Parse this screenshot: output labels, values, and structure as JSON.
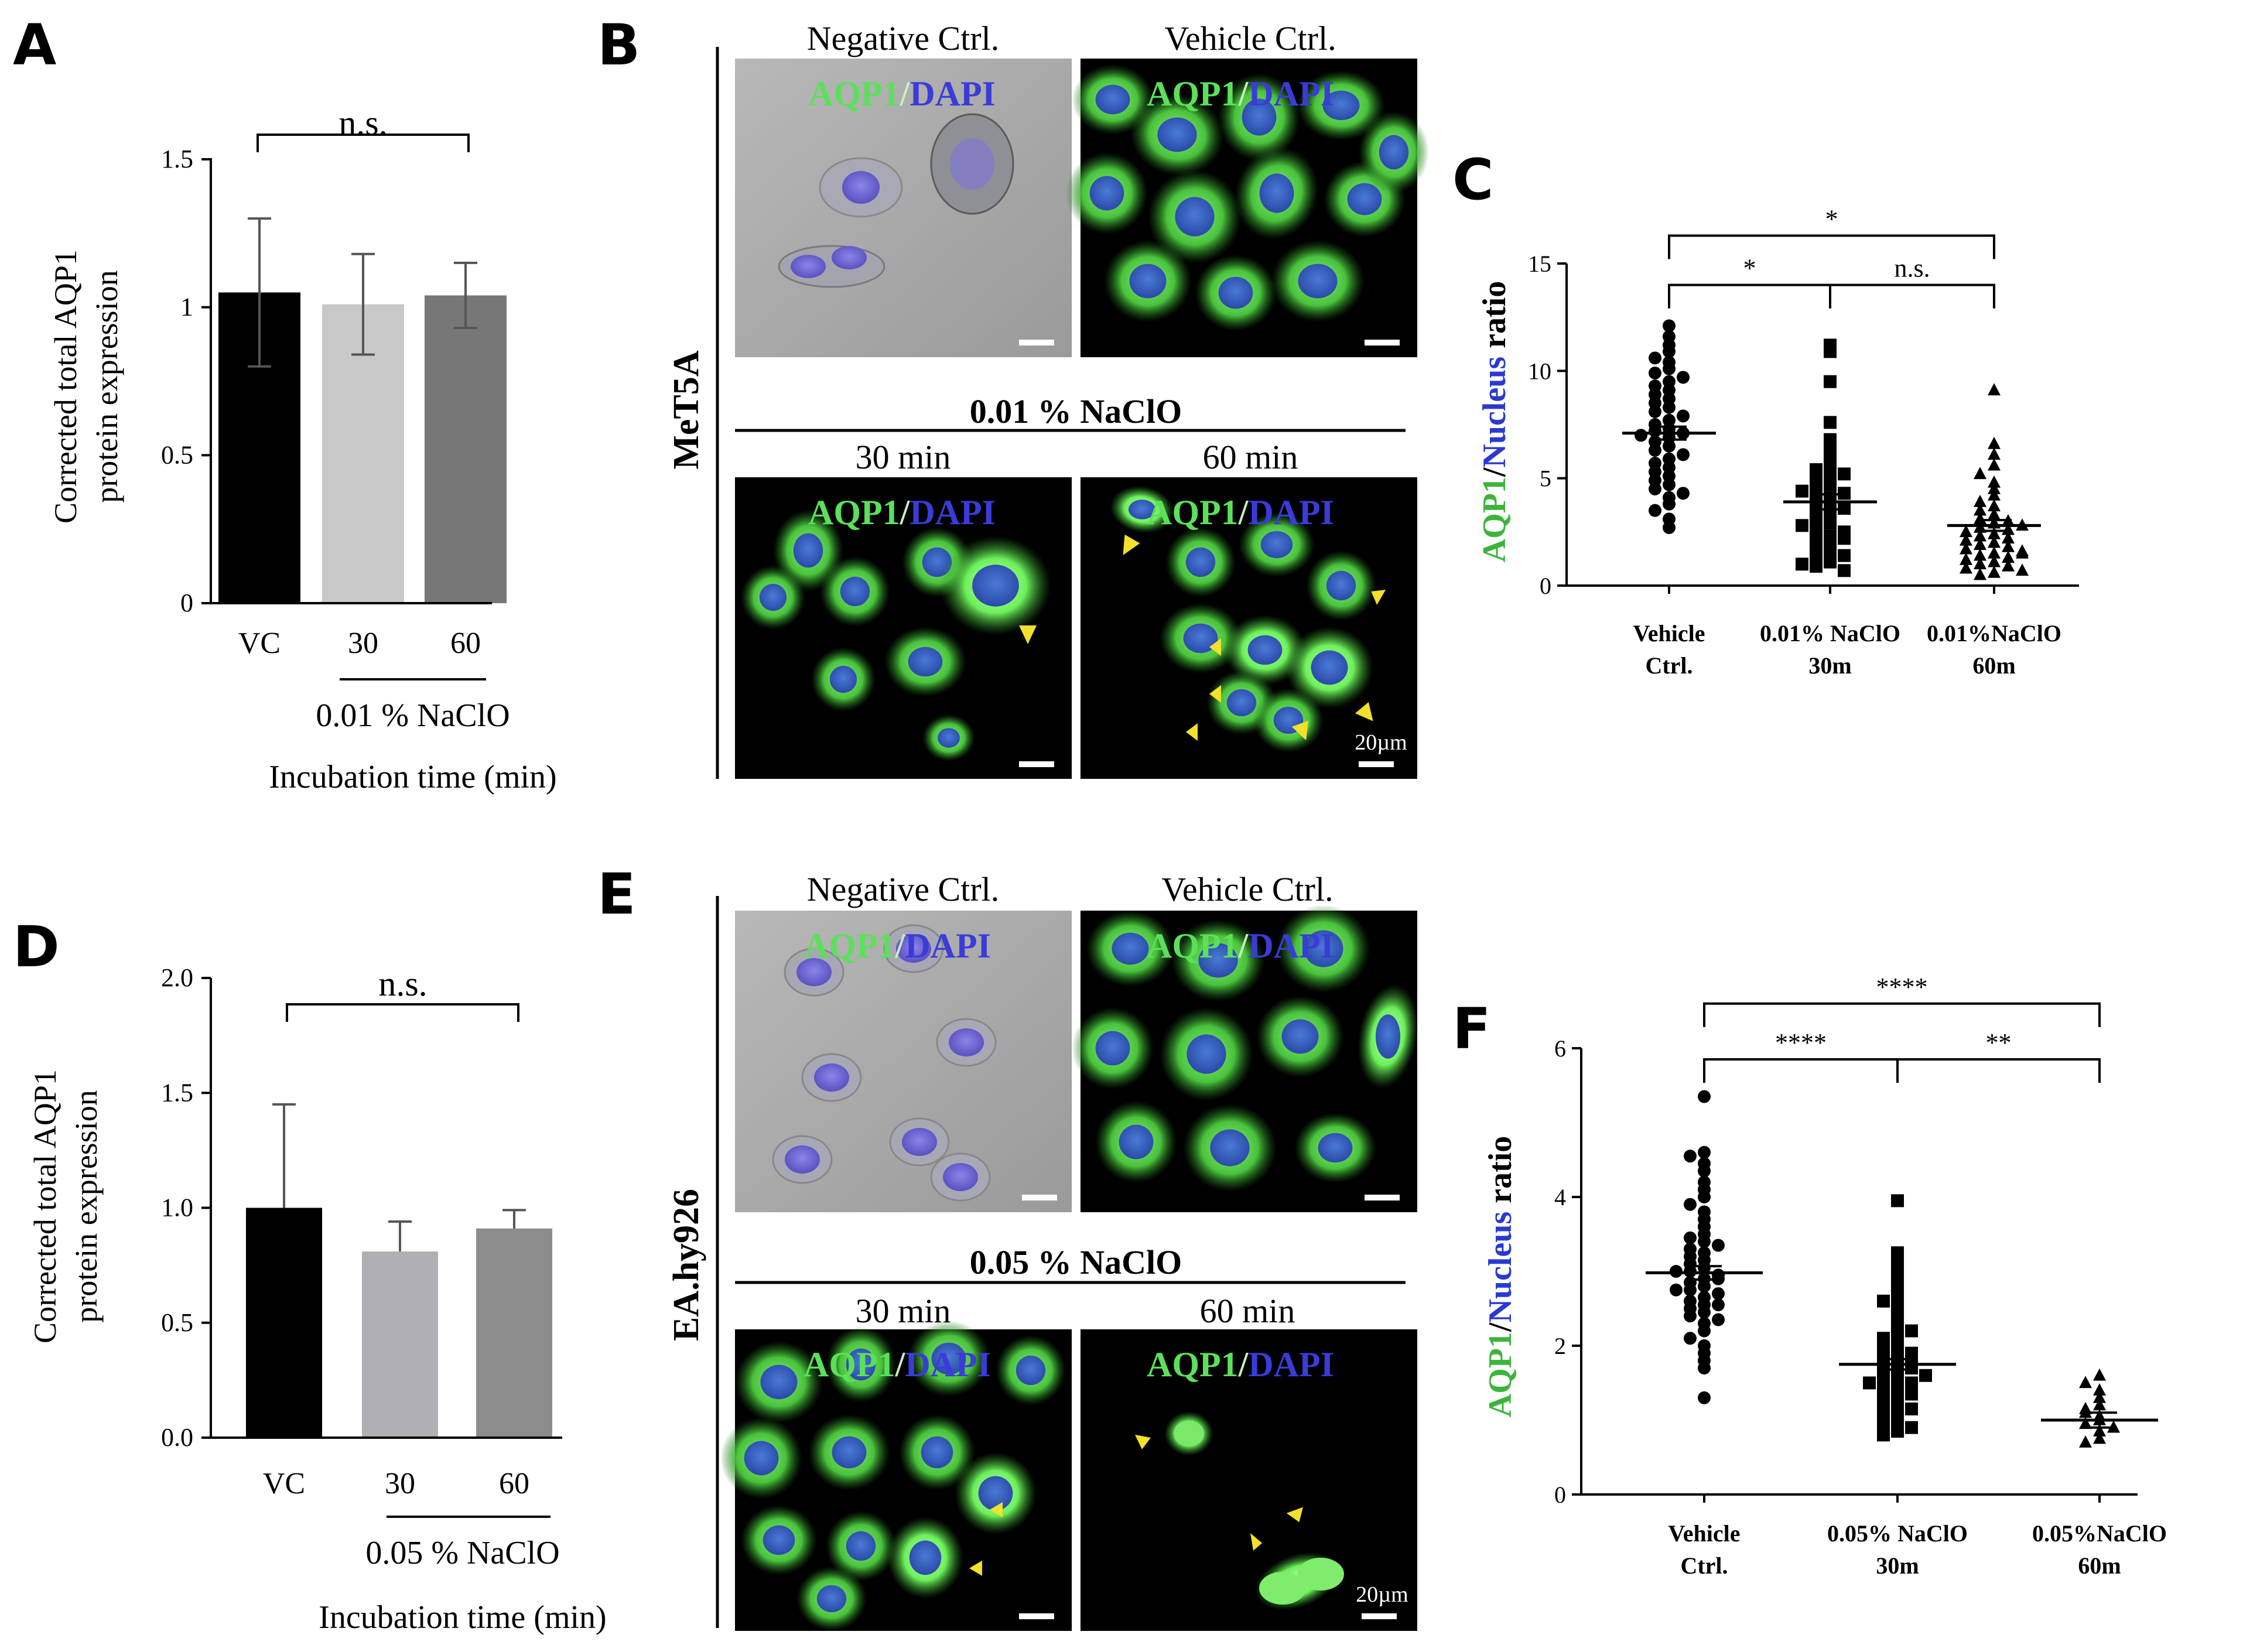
{
  "panels": {
    "A": "A",
    "B": "B",
    "C": "C",
    "D": "D",
    "E": "E",
    "F": "F"
  },
  "chart_data": [
    {
      "type": "bar",
      "panel": "A",
      "categories": [
        "VC",
        "30",
        "60"
      ],
      "values": [
        1.05,
        1.01,
        1.04
      ],
      "errors": [
        0.25,
        0.17,
        0.11
      ],
      "colors": [
        "#000000",
        "#c8c8c8",
        "#777777"
      ],
      "ylabel_line1": "Corrected total AQP1",
      "ylabel_line2": "protein expression",
      "yticks": [
        "0",
        "0.5",
        "1",
        "1.5"
      ],
      "ylim": [
        0,
        1.5
      ],
      "group_label": "0.01 % NaClO",
      "xlabel": "Incubation time (min)",
      "significance": "n.s."
    },
    {
      "type": "bar",
      "panel": "D",
      "categories": [
        "VC",
        "30",
        "60"
      ],
      "values": [
        1.0,
        0.81,
        0.91
      ],
      "errors": [
        0.45,
        0.13,
        0.08
      ],
      "colors": [
        "#000000",
        "#b0b0b4",
        "#8c8c8c"
      ],
      "ylabel_line1": "Corrected total AQP1",
      "ylabel_line2": "protein expression",
      "yticks": [
        "0.0",
        "0.5",
        "1.0",
        "1.5",
        "2.0"
      ],
      "ylim": [
        0,
        2.0
      ],
      "group_label": "0.05 % NaClO",
      "xlabel": "Incubation time (min)",
      "significance": "n.s."
    },
    {
      "type": "scatter",
      "panel": "C",
      "ylabel_green": "AQP1",
      "ylabel_slash": "/",
      "ylabel_blue": "Nucleus",
      "ylabel_rest": " ratio",
      "yticks": [
        "0",
        "5",
        "10",
        "15"
      ],
      "ylim": [
        0,
        15
      ],
      "groups": [
        {
          "line1": "Vehicle",
          "line2": "Ctrl.",
          "marker": "circle",
          "mean": 7.1,
          "sem": 0.3,
          "values": [
            12.1,
            11.6,
            11.2,
            10.9,
            10.6,
            10.4,
            10.1,
            9.9,
            9.7,
            9.5,
            9.3,
            9.1,
            8.9,
            8.7,
            8.5,
            8.3,
            8.1,
            7.9,
            7.7,
            7.5,
            7.3,
            7.2,
            7.1,
            7.0,
            6.9,
            6.7,
            6.5,
            6.3,
            6.1,
            5.9,
            5.7,
            5.5,
            5.3,
            5.1,
            4.9,
            4.7,
            4.5,
            4.3,
            4.1,
            3.8,
            3.5,
            3.1,
            2.7
          ]
        },
        {
          "line1": "0.01% NaClO",
          "line2": "30m",
          "marker": "square",
          "mean": 3.9,
          "sem": 0.35,
          "values": [
            11.2,
            10.9,
            9.5,
            7.6,
            6.8,
            6.3,
            5.8,
            5.6,
            5.4,
            5.1,
            4.9,
            4.7,
            4.5,
            4.3,
            4.1,
            3.9,
            3.7,
            3.5,
            3.3,
            3.1,
            2.9,
            2.7,
            2.5,
            2.3,
            2.1,
            1.9,
            1.7,
            1.5,
            1.3,
            1.1,
            0.9,
            0.7,
            1.0,
            1.4,
            2.2,
            2.8,
            3.6,
            4.4,
            5.2
          ]
        },
        {
          "line1": "0.01%NaClO",
          "line2": "60m",
          "marker": "triangle",
          "mean": 2.8,
          "sem": 0.25,
          "values": [
            9.1,
            6.6,
            6.1,
            5.6,
            5.2,
            4.8,
            4.5,
            4.2,
            3.9,
            3.7,
            3.5,
            3.3,
            3.1,
            2.9,
            2.7,
            2.6,
            2.5,
            2.4,
            2.3,
            2.2,
            2.1,
            2.0,
            1.9,
            1.8,
            1.7,
            1.6,
            1.5,
            1.4,
            1.3,
            1.2,
            1.1,
            1.0,
            0.9,
            0.8,
            0.7,
            0.6,
            0.5,
            3.0,
            2.8,
            1.5
          ]
        }
      ],
      "brackets": [
        {
          "from": 0,
          "to": 2,
          "label": "*",
          "y": 16.3
        },
        {
          "from": 0,
          "to": 1,
          "label": "*",
          "y": 14.0
        },
        {
          "from": 1,
          "to": 2,
          "label": "n.s.",
          "y": 14.0
        }
      ]
    },
    {
      "type": "scatter",
      "panel": "F",
      "ylabel_green": "AQP1",
      "ylabel_slash": "/",
      "ylabel_blue": "Nucleus",
      "ylabel_rest": " ratio",
      "yticks": [
        "0",
        "2",
        "4",
        "6"
      ],
      "ylim": [
        0,
        6
      ],
      "groups": [
        {
          "line1": "Vehicle",
          "line2": "Ctrl.",
          "marker": "circle",
          "mean": 2.98,
          "sem": 0.09,
          "values": [
            5.35,
            4.6,
            4.55,
            4.45,
            4.35,
            4.2,
            4.1,
            4.0,
            3.9,
            3.8,
            3.7,
            3.6,
            3.5,
            3.45,
            3.4,
            3.3,
            3.25,
            3.2,
            3.15,
            3.1,
            3.05,
            3.0,
            2.95,
            2.9,
            2.85,
            2.8,
            2.75,
            2.7,
            2.65,
            2.6,
            2.55,
            2.5,
            2.45,
            2.4,
            2.3,
            2.2,
            2.1,
            2.0,
            1.9,
            1.8,
            1.7,
            1.3,
            3.35,
            3.0,
            2.75,
            2.55,
            2.35,
            2.9
          ]
        },
        {
          "line1": "0.05% NaClO",
          "line2": "30m",
          "marker": "square",
          "mean": 1.75,
          "sem": 0.07,
          "values": [
            3.95,
            3.25,
            3.1,
            3.0,
            2.9,
            2.75,
            2.6,
            2.5,
            2.4,
            2.3,
            2.2,
            2.1,
            2.05,
            2.0,
            1.95,
            1.9,
            1.85,
            1.8,
            1.75,
            1.7,
            1.65,
            1.6,
            1.55,
            1.5,
            1.45,
            1.4,
            1.35,
            1.3,
            1.25,
            1.2,
            1.15,
            1.1,
            1.05,
            1.0,
            0.95,
            0.9,
            0.85,
            0.8,
            1.5,
            1.7,
            1.9,
            2.2,
            2.6,
            1.35,
            1.6
          ]
        },
        {
          "line1": "0.05%NaClO",
          "line2": "60m",
          "marker": "triangle",
          "mean": 1.0,
          "sem": 0.1,
          "values": [
            1.6,
            1.5,
            1.4,
            1.3,
            1.2,
            1.15,
            1.05,
            1.0,
            0.95,
            0.85,
            0.75,
            0.7,
            0.9,
            1.1
          ]
        }
      ],
      "brackets": [
        {
          "from": 0,
          "to": 2,
          "label": "****",
          "y": 6.6
        },
        {
          "from": 0,
          "to": 1,
          "label": "****",
          "y": 5.85
        },
        {
          "from": 1,
          "to": 2,
          "label": "**",
          "y": 5.85
        }
      ]
    }
  ],
  "micrographs": {
    "B": {
      "cell_line": "MeT5A",
      "col1_title": "Negative Ctrl.",
      "col2_title": "Vehicle Ctrl.",
      "treatment": "0.01 % NaClO",
      "time1": "30 min",
      "time2": "60 min",
      "stain_green": "AQP1",
      "stain_slash": "/",
      "stain_blue": "DAPI",
      "scale_text": "20µm"
    },
    "E": {
      "cell_line": "EA.hy926",
      "col1_title": "Negative Ctrl.",
      "col2_title": "Vehicle Ctrl.",
      "treatment": "0.05 % NaClO",
      "time1": "30 min",
      "time2": "60 min",
      "stain_green": "AQP1",
      "stain_slash": "/",
      "stain_blue": "DAPI",
      "scale_text": "20µm"
    }
  },
  "colors": {
    "aqp1_green": "#3cc83c",
    "dapi_blue": "#3b3bd8",
    "arrowhead_yellow": "#f2e02a"
  }
}
